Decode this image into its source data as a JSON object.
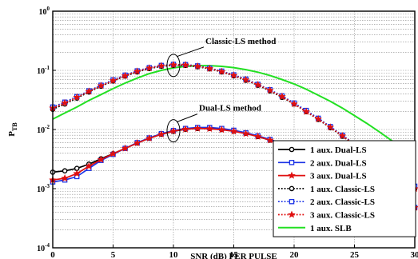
{
  "chart_data": {
    "type": "line",
    "xlabel": "SNR (dB) PER PULSE",
    "ylabel": "P",
    "ylabel_sub": "TB",
    "xlim": [
      0,
      30
    ],
    "ylim": [
      0.0001,
      1
    ],
    "y_scale": "log",
    "grid": true,
    "x_ticks": [
      0,
      5,
      10,
      15,
      20,
      25,
      30
    ],
    "y_ticks": [
      {
        "value": 1,
        "base": "10",
        "exp": "0"
      },
      {
        "value": 0.1,
        "base": "10",
        "exp": "-1"
      },
      {
        "value": 0.01,
        "base": "10",
        "exp": "-2"
      },
      {
        "value": 0.001,
        "base": "10",
        "exp": "-3"
      },
      {
        "value": 0.0001,
        "base": "10",
        "exp": "-4"
      }
    ],
    "legend_position": "bottom-right",
    "annotations": [
      {
        "text": "Classic-LS method",
        "x": 10,
        "y": 0.125
      },
      {
        "text": "Dual-LS method",
        "x": 10,
        "y": 0.0098
      }
    ],
    "series": [
      {
        "name": "1 aux. Dual-LS",
        "color": "#000000",
        "dash": "solid",
        "marker": "circle",
        "x": [
          0,
          1,
          2,
          3,
          4,
          5,
          6,
          7,
          8,
          9,
          10,
          11,
          12,
          13,
          14,
          15,
          16,
          17,
          18,
          19,
          20,
          21,
          22,
          23,
          24,
          25,
          26,
          27,
          28,
          29,
          30
        ],
        "y": [
          0.0019,
          0.002,
          0.0022,
          0.0026,
          0.0032,
          0.0039,
          0.0048,
          0.0059,
          0.0071,
          0.0083,
          0.0093,
          0.0101,
          0.0104,
          0.0104,
          0.01,
          0.0094,
          0.0086,
          0.0076,
          0.0066,
          0.0056,
          0.0047,
          0.0038,
          0.003,
          0.0023,
          0.0018,
          0.0013,
          0.00095,
          0.00072,
          0.00058,
          0.0005,
          0.00048
        ]
      },
      {
        "name": "2 aux. Dual-LS",
        "color": "#1a32e6",
        "dash": "solid",
        "marker": "square",
        "x": [
          0,
          1,
          2,
          3,
          4,
          5,
          6,
          7,
          8,
          9,
          10,
          11,
          12,
          13,
          14,
          15,
          16,
          17,
          18,
          19,
          20,
          21,
          22,
          23,
          24,
          25,
          26,
          27,
          28,
          29,
          30
        ],
        "y": [
          0.0013,
          0.0014,
          0.0016,
          0.0022,
          0.003,
          0.0038,
          0.0048,
          0.006,
          0.0072,
          0.0085,
          0.0096,
          0.0104,
          0.0108,
          0.0108,
          0.0104,
          0.0097,
          0.0088,
          0.0078,
          0.0068,
          0.0058,
          0.0048,
          0.0039,
          0.0031,
          0.0024,
          0.0018,
          0.0013,
          0.00095,
          0.00072,
          0.00058,
          0.0005,
          0.00048
        ]
      },
      {
        "name": "3 aux. Dual-LS",
        "color": "#e01010",
        "dash": "solid",
        "marker": "star",
        "x": [
          0,
          1,
          2,
          3,
          4,
          5,
          6,
          7,
          8,
          9,
          10,
          11,
          12,
          13,
          14,
          15,
          16,
          17,
          18,
          19,
          20,
          21,
          22,
          23,
          24,
          25,
          26,
          27,
          28,
          29,
          30
        ],
        "y": [
          0.0014,
          0.0015,
          0.0018,
          0.0024,
          0.0031,
          0.0039,
          0.0048,
          0.0059,
          0.0071,
          0.0083,
          0.0094,
          0.0101,
          0.0104,
          0.0103,
          0.0099,
          0.0093,
          0.0085,
          0.0076,
          0.0066,
          0.0056,
          0.0047,
          0.0038,
          0.003,
          0.0023,
          0.0017,
          0.0013,
          0.00095,
          0.00072,
          0.00058,
          0.0005,
          0.00048
        ]
      },
      {
        "name": "1 aux. Classic-LS",
        "color": "#000000",
        "dash": "dotted",
        "marker": "circle",
        "x": [
          0,
          1,
          2,
          3,
          4,
          5,
          6,
          7,
          8,
          9,
          10,
          11,
          12,
          13,
          14,
          15,
          16,
          17,
          18,
          19,
          20,
          21,
          22,
          23,
          24,
          25,
          26,
          27,
          28,
          29,
          30
        ],
        "y": [
          0.022,
          0.027,
          0.034,
          0.043,
          0.054,
          0.066,
          0.08,
          0.094,
          0.107,
          0.117,
          0.122,
          0.121,
          0.115,
          0.106,
          0.094,
          0.081,
          0.068,
          0.056,
          0.045,
          0.035,
          0.027,
          0.02,
          0.0148,
          0.0107,
          0.0077,
          0.0055,
          0.0039,
          0.0028,
          0.002,
          0.0014,
          0.001
        ]
      },
      {
        "name": "2 aux. Classic-LS",
        "color": "#1a32e6",
        "dash": "dotted",
        "marker": "square",
        "x": [
          0,
          1,
          2,
          3,
          4,
          5,
          6,
          7,
          8,
          9,
          10,
          11,
          12,
          13,
          14,
          15,
          16,
          17,
          18,
          19,
          20,
          21,
          22,
          23,
          24,
          25,
          26,
          27,
          28,
          29,
          30
        ],
        "y": [
          0.024,
          0.029,
          0.036,
          0.045,
          0.056,
          0.069,
          0.083,
          0.098,
          0.111,
          0.121,
          0.126,
          0.125,
          0.119,
          0.109,
          0.097,
          0.084,
          0.071,
          0.058,
          0.047,
          0.037,
          0.028,
          0.021,
          0.0155,
          0.0112,
          0.008,
          0.0057,
          0.004,
          0.0029,
          0.0021,
          0.0015,
          0.0011
        ]
      },
      {
        "name": "3 aux. Classic-LS",
        "color": "#e01010",
        "dash": "dotted",
        "marker": "star",
        "x": [
          0,
          1,
          2,
          3,
          4,
          5,
          6,
          7,
          8,
          9,
          10,
          11,
          12,
          13,
          14,
          15,
          16,
          17,
          18,
          19,
          20,
          21,
          22,
          23,
          24,
          25,
          26,
          27,
          28,
          29,
          30
        ],
        "y": [
          0.023,
          0.028,
          0.035,
          0.044,
          0.055,
          0.067,
          0.081,
          0.096,
          0.109,
          0.119,
          0.124,
          0.123,
          0.117,
          0.107,
          0.095,
          0.082,
          0.069,
          0.057,
          0.046,
          0.036,
          0.027,
          0.02,
          0.015,
          0.0109,
          0.0078,
          0.0056,
          0.0039,
          0.0028,
          0.002,
          0.0014,
          0.001
        ]
      },
      {
        "name": "1 aux. SLB",
        "color": "#22e022",
        "dash": "solid",
        "marker": "none",
        "x": [
          0,
          1,
          2,
          3,
          4,
          5,
          6,
          7,
          8,
          9,
          10,
          11,
          12,
          13,
          14,
          15,
          16,
          17,
          18,
          19,
          20,
          21,
          22,
          23,
          24,
          25,
          26,
          27,
          28,
          29,
          30
        ],
        "y": [
          0.015,
          0.019,
          0.024,
          0.031,
          0.039,
          0.049,
          0.061,
          0.074,
          0.088,
          0.1,
          0.11,
          0.117,
          0.12,
          0.12,
          0.117,
          0.111,
          0.103,
          0.093,
          0.082,
          0.07,
          0.059,
          0.048,
          0.038,
          0.03,
          0.023,
          0.0172,
          0.0128,
          0.0093,
          0.0067,
          0.0048,
          0.0034
        ]
      }
    ]
  }
}
